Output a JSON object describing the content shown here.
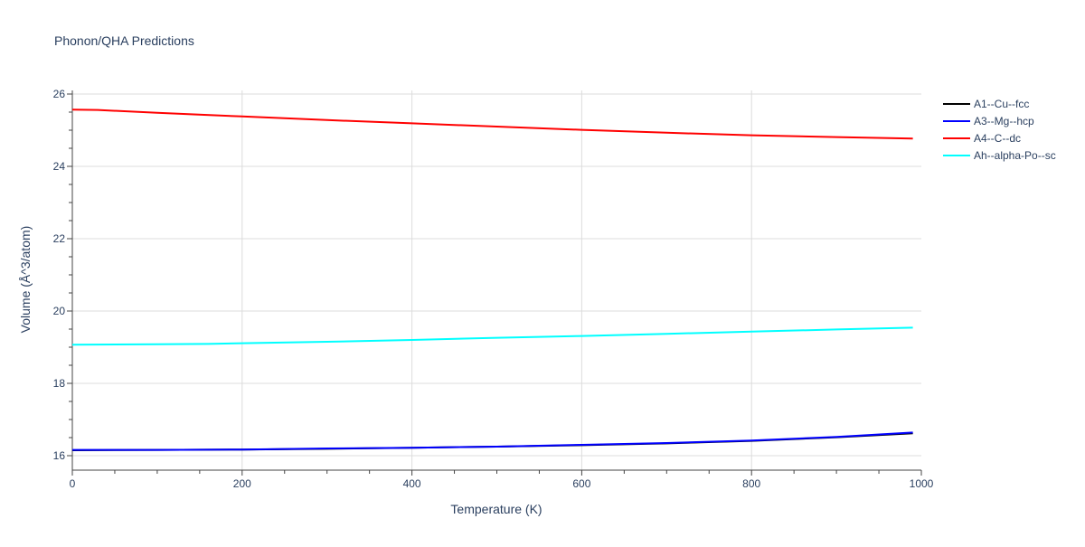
{
  "chart_data": {
    "type": "line",
    "title": "Phonon/QHA Predictions",
    "xlabel": "Temperature (K)",
    "ylabel": "Volume (Å^3/atom)",
    "xlim": [
      0,
      1000
    ],
    "ylim": [
      15.6,
      26.1
    ],
    "xticks": [
      0,
      200,
      400,
      600,
      800,
      1000
    ],
    "yticks": [
      16,
      18,
      20,
      22,
      24,
      26
    ],
    "grid": true,
    "legend_position": "top-right",
    "series": [
      {
        "name": "A1--Cu--fcc",
        "color": "#000000",
        "x": [
          0,
          100,
          200,
          300,
          400,
          500,
          600,
          700,
          800,
          900,
          990
        ],
        "y": [
          16.15,
          16.16,
          16.17,
          16.19,
          16.22,
          16.25,
          16.29,
          16.34,
          16.41,
          16.51,
          16.62
        ]
      },
      {
        "name": "A3--Mg--hcp",
        "color": "#0000ff",
        "x": [
          0,
          100,
          200,
          300,
          400,
          500,
          600,
          700,
          800,
          900,
          990
        ],
        "y": [
          16.16,
          16.16,
          16.17,
          16.2,
          16.22,
          16.25,
          16.3,
          16.35,
          16.42,
          16.52,
          16.64
        ]
      },
      {
        "name": "A4--C--dc",
        "color": "#ff0000",
        "x": [
          0,
          30,
          100,
          200,
          300,
          400,
          500,
          600,
          700,
          800,
          900,
          990
        ],
        "y": [
          25.57,
          25.56,
          25.48,
          25.38,
          25.28,
          25.19,
          25.1,
          25.01,
          24.93,
          24.86,
          24.81,
          24.77
        ]
      },
      {
        "name": "Ah--alpha-Po--sc",
        "color": "#00ffff",
        "x": [
          0,
          100,
          160,
          200,
          300,
          400,
          500,
          600,
          700,
          800,
          900,
          990
        ],
        "y": [
          19.07,
          19.08,
          19.09,
          19.11,
          19.15,
          19.2,
          19.26,
          19.31,
          19.37,
          19.43,
          19.49,
          19.54
        ]
      }
    ]
  }
}
